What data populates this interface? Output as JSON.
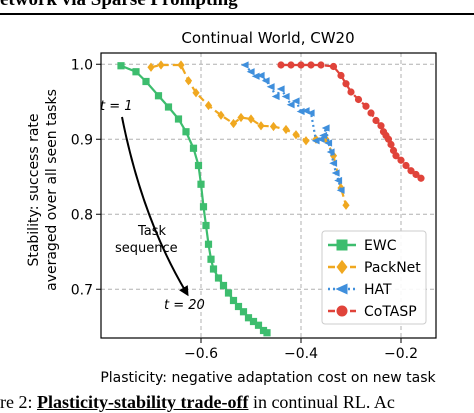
{
  "header_text": "etwork via Sparse Prompting",
  "caption": {
    "prefix": "re 2: ",
    "bold": "Plasticity-stability trade-off",
    "rest": " in continual RL. Ac"
  },
  "annotations": {
    "t_start": "t = 1",
    "t_end": "t = 20",
    "task_line1": "Task",
    "task_line2": "sequence"
  },
  "chart_data": {
    "type": "line",
    "title": "Continual World, CW20",
    "xlabel": "Plasticity: negative adaptation cost on new task",
    "ylabel_line1": "Stability: success rate",
    "ylabel_line2": "averaged over all seen tasks",
    "xlim": [
      -0.8,
      -0.13
    ],
    "ylim": [
      0.635,
      1.015
    ],
    "xticks": [
      -0.6,
      -0.4,
      -0.2
    ],
    "xtick_labels": [
      "−0.6",
      "−0.4",
      "−0.2"
    ],
    "yticks": [
      0.7,
      0.8,
      0.9,
      1.0
    ],
    "ytick_labels": [
      "0.7",
      "0.8",
      "0.9",
      "1.0"
    ],
    "grid": true,
    "legend_position": "lower-right",
    "series": [
      {
        "name": "EWC",
        "color": "#3dbd6e",
        "marker": "square",
        "dash": "solid",
        "x": [
          -0.76,
          -0.73,
          -0.71,
          -0.685,
          -0.665,
          -0.645,
          -0.63,
          -0.615,
          -0.605,
          -0.6,
          -0.595,
          -0.59,
          -0.585,
          -0.58,
          -0.575,
          -0.565,
          -0.555,
          -0.545,
          -0.535,
          -0.525,
          -0.515,
          -0.505,
          -0.495,
          -0.485,
          -0.475,
          -0.468
        ],
        "y": [
          0.998,
          0.99,
          0.977,
          0.958,
          0.943,
          0.927,
          0.91,
          0.888,
          0.865,
          0.84,
          0.81,
          0.785,
          0.76,
          0.74,
          0.727,
          0.715,
          0.705,
          0.695,
          0.685,
          0.677,
          0.67,
          0.662,
          0.657,
          0.652,
          0.645,
          0.642
        ]
      },
      {
        "name": "PackNet",
        "color": "#f0a820",
        "marker": "diamond",
        "dash": "dashed",
        "x": [
          -0.7,
          -0.68,
          -0.64,
          -0.625,
          -0.61,
          -0.585,
          -0.56,
          -0.535,
          -0.52,
          -0.5,
          -0.48,
          -0.455,
          -0.43,
          -0.41,
          -0.39,
          -0.37,
          -0.35,
          -0.335,
          -0.32,
          -0.31
        ],
        "y": [
          0.996,
          0.999,
          0.999,
          0.978,
          0.962,
          0.945,
          0.932,
          0.921,
          0.929,
          0.927,
          0.918,
          0.917,
          0.913,
          0.906,
          0.898,
          0.9,
          0.9,
          0.878,
          0.835,
          0.812
        ]
      },
      {
        "name": "HAT",
        "color": "#3f8fdc",
        "marker": "triangle-left",
        "dash": "dotted",
        "x": [
          -0.512,
          -0.5,
          -0.49,
          -0.48,
          -0.47,
          -0.46,
          -0.45,
          -0.44,
          -0.43,
          -0.42,
          -0.41,
          -0.4,
          -0.39,
          -0.38,
          -0.37,
          -0.36,
          -0.355,
          -0.35,
          -0.345,
          -0.34,
          -0.335,
          -0.33,
          -0.325,
          -0.32
        ],
        "y": [
          0.999,
          0.99,
          0.984,
          0.985,
          0.978,
          0.97,
          0.957,
          0.967,
          0.957,
          0.946,
          0.951,
          0.937,
          0.938,
          0.935,
          0.898,
          0.9,
          0.905,
          0.915,
          0.895,
          0.883,
          0.868,
          0.855,
          0.845,
          0.832
        ]
      },
      {
        "name": "CoTASP",
        "color": "#e0433a",
        "marker": "circle",
        "dash": "dashed",
        "x": [
          -0.44,
          -0.42,
          -0.4,
          -0.38,
          -0.36,
          -0.335,
          -0.32,
          -0.31,
          -0.3,
          -0.285,
          -0.27,
          -0.26,
          -0.25,
          -0.24,
          -0.235,
          -0.23,
          -0.225,
          -0.22,
          -0.215,
          -0.21,
          -0.2,
          -0.19,
          -0.18,
          -0.17,
          -0.16
        ],
        "y": [
          0.999,
          0.999,
          0.999,
          0.999,
          0.999,
          0.997,
          0.985,
          0.974,
          0.963,
          0.953,
          0.944,
          0.935,
          0.925,
          0.918,
          0.91,
          0.905,
          0.9,
          0.893,
          0.885,
          0.878,
          0.872,
          0.865,
          0.858,
          0.853,
          0.848
        ]
      }
    ]
  }
}
